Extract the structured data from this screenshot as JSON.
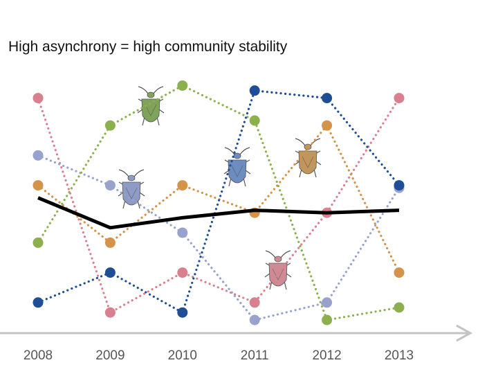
{
  "title": "High asynchrony = high community stability",
  "chart_data": {
    "type": "line",
    "title": "High asynchrony = high community stability",
    "xlabel": "",
    "ylabel": "",
    "x": [
      "2008",
      "2009",
      "2010",
      "2011",
      "2012",
      "2013"
    ],
    "ylim": [
      0,
      100
    ],
    "grid": false,
    "series": [
      {
        "name": "pink species",
        "color": "#d9808f",
        "style": "dotted",
        "values": [
          94,
          8,
          24,
          12,
          48,
          94
        ]
      },
      {
        "name": "lavender species",
        "color": "#97a3cc",
        "style": "dotted",
        "values": [
          71,
          59,
          40,
          5,
          12,
          58
        ]
      },
      {
        "name": "orange species",
        "color": "#d4924a",
        "style": "dotted",
        "values": [
          59,
          36,
          59,
          48,
          83,
          24
        ]
      },
      {
        "name": "green species",
        "color": "#8db04e",
        "style": "dotted",
        "values": [
          36,
          83,
          99,
          85,
          5,
          10
        ]
      },
      {
        "name": "blue species",
        "color": "#1f4e96",
        "style": "dotted",
        "values": [
          12,
          24,
          8,
          97,
          94,
          59
        ]
      },
      {
        "name": "community",
        "color": "#000000",
        "style": "solid",
        "values": [
          54,
          42,
          46,
          49,
          48,
          49
        ]
      }
    ]
  }
}
